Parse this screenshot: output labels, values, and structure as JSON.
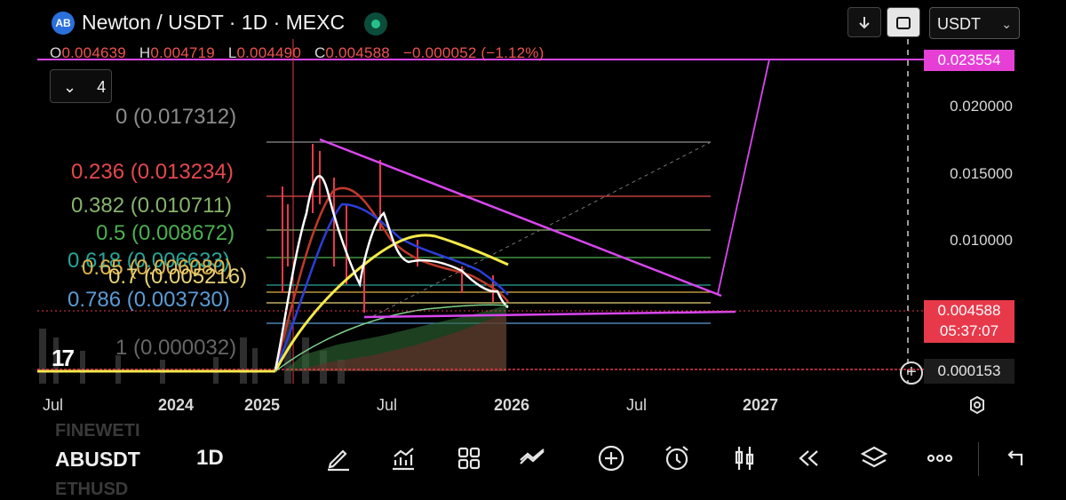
{
  "header": {
    "logo_text": "AB",
    "title": "Newton / USDT · 1D · MEXC",
    "ohlc": [
      {
        "key": "O",
        "value": "0.004639"
      },
      {
        "key": "H",
        "value": "0.004719"
      },
      {
        "key": "L",
        "value": "0.004490"
      },
      {
        "key": "C",
        "value": "0.004588"
      }
    ],
    "change": "−0.000052 (−1.12%)",
    "currency": "USDT",
    "download_icon": "arrow-down-icon",
    "fullscreen_icon": "fullscreen-icon"
  },
  "indicator_toggle": {
    "count": "4"
  },
  "fib_levels": [
    {
      "label": "0 (0.017312)",
      "color": "#8c8c8c"
    },
    {
      "label": "0.236 (0.013234)",
      "color": "#e5484d"
    },
    {
      "label": "0.382 (0.010711)",
      "color": "#86b36b"
    },
    {
      "label": "0.5 (0.008672)",
      "color": "#4caf50"
    },
    {
      "label": "0.618 (0.006633)",
      "color": "#26a69a"
    },
    {
      "label": "0.65 (0.006080)",
      "color": "#e0b34b"
    },
    {
      "label": "0.7 (0.005216)",
      "color": "#e8d27a"
    },
    {
      "label": "0.786 (0.003730)",
      "color": "#5b9bd5"
    },
    {
      "label": "1 (0.000032)",
      "color": "#666666"
    }
  ],
  "price_axis": [
    "0.020000",
    "0.015000",
    "0.010000"
  ],
  "price_tags": {
    "target": "0.023554",
    "current": "0.004588",
    "countdown": "05:37:07",
    "crosshair": "0.000153"
  },
  "time_axis": [
    {
      "label": "Jul",
      "bold": false
    },
    {
      "label": "2024",
      "bold": true
    },
    {
      "label": "2025",
      "bold": true
    },
    {
      "label": "Jul",
      "bold": false
    },
    {
      "label": "2026",
      "bold": true
    },
    {
      "label": "Jul",
      "bold": false
    },
    {
      "label": "2027",
      "bold": true
    }
  ],
  "bottom": {
    "symbol": "ABUSDT",
    "symbol_above": "FINEWETI",
    "symbol_below": "ETHUSD",
    "timeframe": "1D",
    "tools": [
      "pencil-icon",
      "indicators-icon",
      "grid-icon",
      "compare-icon",
      "add-icon",
      "alarm-icon",
      "candles-icon",
      "replay-icon",
      "layers-icon",
      "more-icon",
      "back-icon"
    ]
  },
  "colors": {
    "magenta": "#d946ef",
    "pink_tag": "#e63fd6",
    "red_tag": "#e8394a",
    "yellow": "#f5e94a"
  }
}
